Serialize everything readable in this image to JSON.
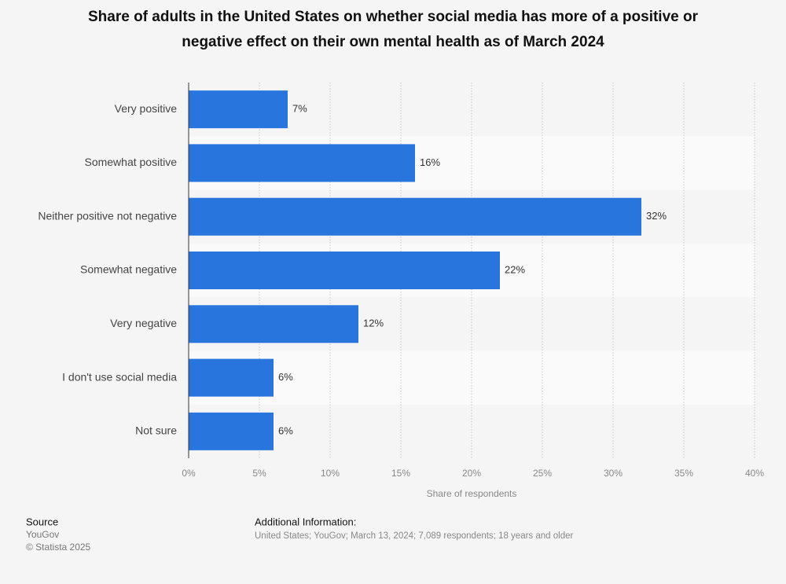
{
  "chart_data": {
    "type": "bar",
    "orientation": "horizontal",
    "title": [
      "Share of adults in the United States on whether social media has more of a positive or",
      "negative effect on their own mental health as of March 2024"
    ],
    "categories": [
      "Very positive",
      "Somewhat positive",
      "Neither positive not negative",
      "Somewhat negative",
      "Very negative",
      "I don't use social media",
      "Not sure"
    ],
    "values": [
      7,
      16,
      32,
      22,
      12,
      6,
      6
    ],
    "value_labels": [
      "7%",
      "16%",
      "32%",
      "22%",
      "12%",
      "6%",
      "6%"
    ],
    "color": "#2876dd",
    "xlim": [
      0,
      40
    ],
    "xticks": [
      {
        "value": 0,
        "label": "0%"
      },
      {
        "value": 5,
        "label": "5%"
      },
      {
        "value": 10,
        "label": "10%"
      },
      {
        "value": 15,
        "label": "15%"
      },
      {
        "value": 20,
        "label": "20%"
      },
      {
        "value": 25,
        "label": "25%"
      },
      {
        "value": 30,
        "label": "30%"
      },
      {
        "value": 35,
        "label": "35%"
      },
      {
        "value": 40,
        "label": "40%"
      }
    ],
    "xlabel": "Share of respondents",
    "grid": true
  },
  "footer": {
    "source_title": "Source",
    "source": "YouGov",
    "copyright": "© Statista 2025",
    "info_title": "Additional Information:",
    "info": "United States; YouGov; March 13, 2024; 7,089 respondents; 18 years and older"
  }
}
